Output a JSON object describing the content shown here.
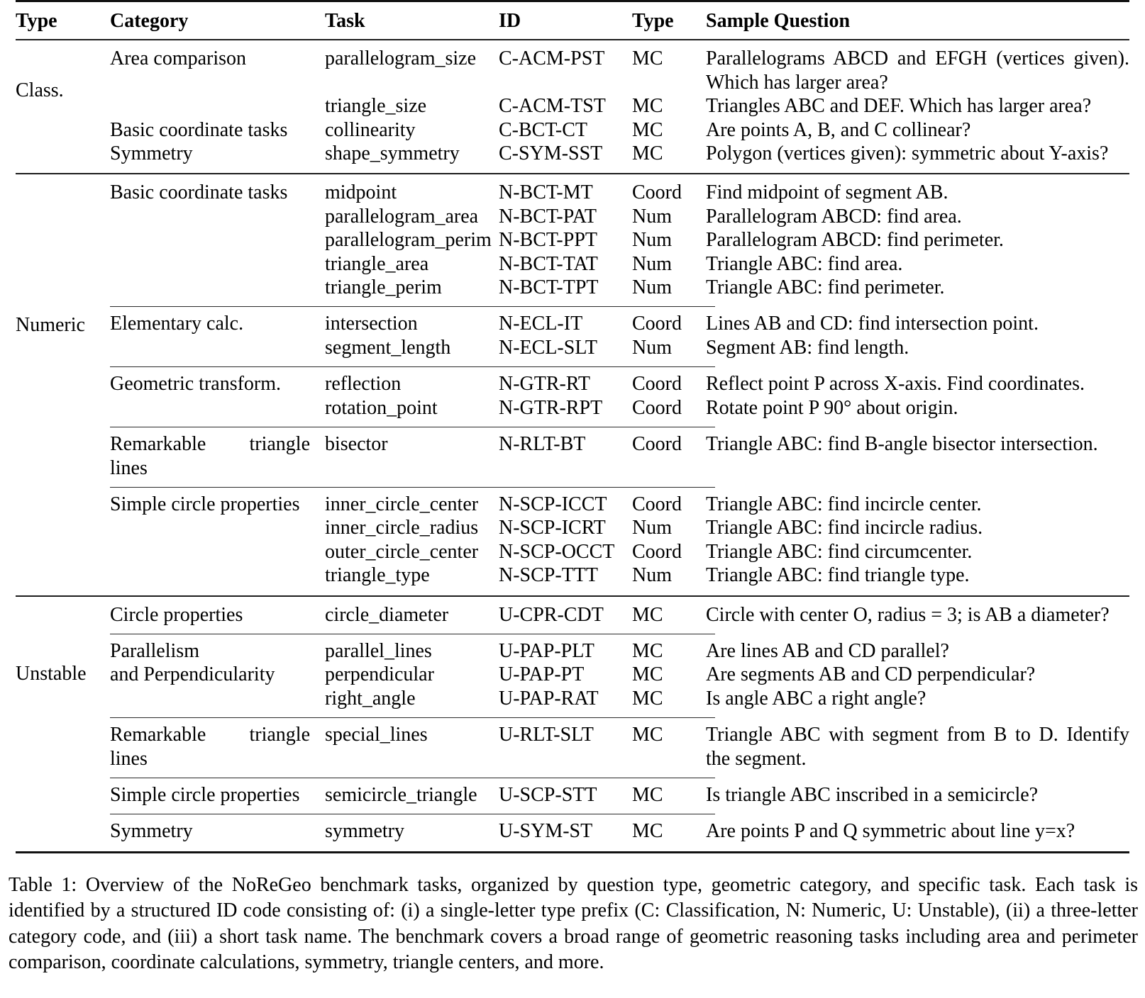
{
  "table": {
    "headers": [
      "Type",
      "Category",
      "Task",
      "ID",
      "Type",
      "Sample Question"
    ],
    "sections": [
      {
        "type": "Class.",
        "groups": [
          {
            "category": "Area comparison",
            "rows": [
              {
                "task": "parallelogram_size",
                "id": "C-ACM-PST",
                "qtype": "MC",
                "question": "Parallelograms ABCD and EFGH (vertices given). Which has larger area?"
              },
              {
                "task": "triangle_size",
                "id": "C-ACM-TST",
                "qtype": "MC",
                "question": "Triangles ABC and DEF. Which has larger area?"
              }
            ]
          },
          {
            "category": "Basic coordinate tasks",
            "rows": [
              {
                "task": "collinearity",
                "id": "C-BCT-CT",
                "qtype": "MC",
                "question": "Are points A, B, and C collinear?"
              }
            ]
          },
          {
            "category": "Symmetry",
            "rows": [
              {
                "task": "shape_symmetry",
                "id": "C-SYM-SST",
                "qtype": "MC",
                "question": "Polygon (vertices given): symmetric about Y-axis?"
              }
            ]
          }
        ]
      },
      {
        "type": "Numeric",
        "groups": [
          {
            "category": "Basic coordinate tasks",
            "rows": [
              {
                "task": "midpoint",
                "id": "N-BCT-MT",
                "qtype": "Coord",
                "question": "Find midpoint of segment AB."
              },
              {
                "task": "parallelogram_area",
                "id": "N-BCT-PAT",
                "qtype": "Num",
                "question": "Parallelogram ABCD: find area."
              },
              {
                "task": "parallelogram_perim",
                "id": "N-BCT-PPT",
                "qtype": "Num",
                "question": "Parallelogram ABCD: find perimeter."
              },
              {
                "task": "triangle_area",
                "id": "N-BCT-TAT",
                "qtype": "Num",
                "question": "Triangle ABC: find area."
              },
              {
                "task": "triangle_perim",
                "id": "N-BCT-TPT",
                "qtype": "Num",
                "question": "Triangle ABC: find perimeter."
              }
            ]
          },
          {
            "category": "Elementary calc.",
            "rows": [
              {
                "task": "intersection",
                "id": "N-ECL-IT",
                "qtype": "Coord",
                "question": "Lines AB and CD: find intersection point."
              },
              {
                "task": "segment_length",
                "id": "N-ECL-SLT",
                "qtype": "Num",
                "question": "Segment AB: find length."
              }
            ]
          },
          {
            "category": "Geometric transform.",
            "rows": [
              {
                "task": "reflection",
                "id": "N-GTR-RT",
                "qtype": "Coord",
                "question": "Reflect point P across X-axis. Find coordinates."
              },
              {
                "task": "rotation_point",
                "id": "N-GTR-RPT",
                "qtype": "Coord",
                "question": "Rotate point P 90° about origin."
              }
            ]
          },
          {
            "category": "Remarkable triangle lines",
            "rows": [
              {
                "task": "bisector",
                "id": "N-RLT-BT",
                "qtype": "Coord",
                "question": "Triangle ABC: find B-angle bisector intersection."
              }
            ]
          },
          {
            "category": "Simple circle properties",
            "rows": [
              {
                "task": "inner_circle_center",
                "id": "N-SCP-ICCT",
                "qtype": "Coord",
                "question": "Triangle ABC: find incircle center."
              },
              {
                "task": "inner_circle_radius",
                "id": "N-SCP-ICRT",
                "qtype": "Num",
                "question": "Triangle ABC: find incircle radius."
              },
              {
                "task": "outer_circle_center",
                "id": "N-SCP-OCCT",
                "qtype": "Coord",
                "question": "Triangle ABC: find circumcenter."
              },
              {
                "task": "triangle_type",
                "id": "N-SCP-TTT",
                "qtype": "Num",
                "question": "Triangle ABC: find triangle type."
              }
            ]
          }
        ]
      },
      {
        "type": "Unstable",
        "groups": [
          {
            "category": "Circle properties",
            "rows": [
              {
                "task": "circle_diameter",
                "id": "U-CPR-CDT",
                "qtype": "MC",
                "question": "Circle with center O, radius = 3; is AB a diameter?"
              }
            ]
          },
          {
            "category": "Parallelism\nand Perpendicularity",
            "rows": [
              {
                "task": "parallel_lines",
                "id": "U-PAP-PLT",
                "qtype": "MC",
                "question": "Are lines AB and CD parallel?"
              },
              {
                "task": "perpendicular",
                "id": "U-PAP-PT",
                "qtype": "MC",
                "question": "Are segments AB and CD perpendicular?"
              },
              {
                "task": "right_angle",
                "id": "U-PAP-RAT",
                "qtype": "MC",
                "question": "Is angle ABC a right angle?"
              }
            ]
          },
          {
            "category": "Remarkable triangle lines",
            "rows": [
              {
                "task": "special_lines",
                "id": "U-RLT-SLT",
                "qtype": "MC",
                "question": "Triangle ABC with segment from B to D. Identify the segment."
              }
            ]
          },
          {
            "category": "Simple circle properties",
            "rows": [
              {
                "task": "semicircle_triangle",
                "id": "U-SCP-STT",
                "qtype": "MC",
                "question": "Is triangle ABC inscribed in a semicircle?"
              }
            ]
          },
          {
            "category": "Symmetry",
            "rows": [
              {
                "task": "symmetry",
                "id": "U-SYM-ST",
                "qtype": "MC",
                "question": "Are points P and Q symmetric about line y=x?"
              }
            ]
          }
        ]
      }
    ]
  },
  "caption": {
    "text": "Table 1: Overview of the NoReGeo benchmark tasks, organized by question type, geometric category, and specific task. Each task is identified by a structured ID code consisting of: (i) a single-letter type prefix (C: Classification, N: Numeric, U: Unstable), (ii) a three-letter category code, and (iii) a short task name. The benchmark covers a broad range of geometric reasoning tasks including area and perimeter comparison, coordinate calculations, symmetry, triangle centers, and more."
  }
}
